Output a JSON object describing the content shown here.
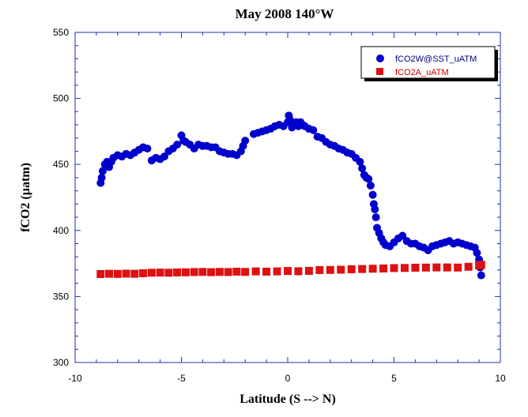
{
  "chart_data": {
    "type": "scatter",
    "title": "May 2008 140°W",
    "xlabel": "Latitude (S --> N)",
    "ylabel": "fCO2 (µatm)",
    "xlim": [
      -10,
      10
    ],
    "ylim": [
      300,
      550
    ],
    "xticks": [
      -10,
      -5,
      0,
      5,
      10
    ],
    "yticks": [
      300,
      350,
      400,
      450,
      500,
      550
    ],
    "legend_position": "top-right",
    "grid": false,
    "series": [
      {
        "name": "fCO2W@SST_uATM",
        "color": "#0000cc",
        "marker": "circle",
        "points": [
          [
            -8.8,
            436
          ],
          [
            -8.75,
            440
          ],
          [
            -8.7,
            445
          ],
          [
            -8.6,
            450
          ],
          [
            -8.5,
            452
          ],
          [
            -8.4,
            448
          ],
          [
            -8.3,
            452
          ],
          [
            -8.2,
            455
          ],
          [
            -8.0,
            457
          ],
          [
            -7.8,
            456
          ],
          [
            -7.6,
            458
          ],
          [
            -7.4,
            457
          ],
          [
            -7.2,
            459
          ],
          [
            -7.0,
            461
          ],
          [
            -6.8,
            463
          ],
          [
            -6.6,
            462
          ],
          [
            -6.4,
            453
          ],
          [
            -6.2,
            455
          ],
          [
            -6.0,
            454
          ],
          [
            -5.8,
            456
          ],
          [
            -5.6,
            460
          ],
          [
            -5.4,
            462
          ],
          [
            -5.2,
            465
          ],
          [
            -5.0,
            472
          ],
          [
            -4.9,
            468
          ],
          [
            -4.8,
            467
          ],
          [
            -4.6,
            465
          ],
          [
            -4.4,
            462
          ],
          [
            -4.2,
            465
          ],
          [
            -4.0,
            464
          ],
          [
            -3.8,
            464
          ],
          [
            -3.6,
            463
          ],
          [
            -3.4,
            463
          ],
          [
            -3.2,
            460
          ],
          [
            -3.0,
            459
          ],
          [
            -2.8,
            458
          ],
          [
            -2.6,
            458
          ],
          [
            -2.4,
            457
          ],
          [
            -2.2,
            460
          ],
          [
            -2.1,
            464
          ],
          [
            -2.0,
            468
          ],
          [
            -1.6,
            473
          ],
          [
            -1.4,
            474
          ],
          [
            -1.2,
            475
          ],
          [
            -1.0,
            476
          ],
          [
            -0.8,
            477
          ],
          [
            -0.6,
            479
          ],
          [
            -0.4,
            480
          ],
          [
            -0.2,
            479
          ],
          [
            0.0,
            482
          ],
          [
            0.05,
            487
          ],
          [
            0.1,
            484
          ],
          [
            0.2,
            478
          ],
          [
            0.3,
            481
          ],
          [
            0.4,
            482
          ],
          [
            0.5,
            479
          ],
          [
            0.6,
            482
          ],
          [
            0.7,
            480
          ],
          [
            0.8,
            479
          ],
          [
            1.0,
            477
          ],
          [
            1.2,
            476
          ],
          [
            1.4,
            471
          ],
          [
            1.6,
            470
          ],
          [
            1.8,
            467
          ],
          [
            2.0,
            465
          ],
          [
            2.2,
            464
          ],
          [
            2.4,
            462
          ],
          [
            2.6,
            461
          ],
          [
            2.8,
            459
          ],
          [
            3.0,
            458
          ],
          [
            3.2,
            455
          ],
          [
            3.4,
            452
          ],
          [
            3.5,
            447
          ],
          [
            3.6,
            442
          ],
          [
            3.7,
            440
          ],
          [
            3.8,
            439
          ],
          [
            3.9,
            434
          ],
          [
            4.0,
            427
          ],
          [
            4.05,
            420
          ],
          [
            4.1,
            416
          ],
          [
            4.15,
            410
          ],
          [
            4.2,
            402
          ],
          [
            4.3,
            398
          ],
          [
            4.4,
            394
          ],
          [
            4.5,
            391
          ],
          [
            4.6,
            389
          ],
          [
            4.8,
            388
          ],
          [
            5.0,
            391
          ],
          [
            5.2,
            394
          ],
          [
            5.4,
            396
          ],
          [
            5.6,
            392
          ],
          [
            5.8,
            390
          ],
          [
            6.0,
            390
          ],
          [
            6.2,
            388
          ],
          [
            6.4,
            387
          ],
          [
            6.6,
            385
          ],
          [
            6.8,
            388
          ],
          [
            7.0,
            389
          ],
          [
            7.2,
            390
          ],
          [
            7.4,
            391
          ],
          [
            7.6,
            392
          ],
          [
            7.8,
            390
          ],
          [
            8.0,
            391
          ],
          [
            8.2,
            390
          ],
          [
            8.4,
            389
          ],
          [
            8.6,
            388
          ],
          [
            8.8,
            387
          ],
          [
            8.9,
            383
          ],
          [
            9.0,
            378
          ],
          [
            9.05,
            372
          ],
          [
            9.1,
            366
          ]
        ]
      },
      {
        "name": "fCO2A_uATM",
        "color": "#dd1111",
        "marker": "square",
        "points": [
          [
            -8.8,
            367.0
          ],
          [
            -8.4,
            367.2
          ],
          [
            -8.0,
            367.1
          ],
          [
            -7.6,
            367.3
          ],
          [
            -7.2,
            367.2
          ],
          [
            -6.8,
            367.6
          ],
          [
            -6.4,
            368.0
          ],
          [
            -6.0,
            368.1
          ],
          [
            -5.6,
            368.0
          ],
          [
            -5.2,
            368.2
          ],
          [
            -4.8,
            368.3
          ],
          [
            -4.4,
            368.5
          ],
          [
            -4.0,
            368.6
          ],
          [
            -3.6,
            368.4
          ],
          [
            -3.2,
            368.6
          ],
          [
            -2.8,
            368.5
          ],
          [
            -2.4,
            368.8
          ],
          [
            -2.0,
            368.6
          ],
          [
            -1.5,
            369.0
          ],
          [
            -1.0,
            368.8
          ],
          [
            -0.5,
            369.0
          ],
          [
            0.0,
            369.3
          ],
          [
            0.5,
            369.1
          ],
          [
            1.0,
            369.4
          ],
          [
            1.5,
            370.0
          ],
          [
            2.0,
            370.1
          ],
          [
            2.5,
            370.3
          ],
          [
            3.0,
            370.6
          ],
          [
            3.5,
            370.8
          ],
          [
            4.0,
            371.0
          ],
          [
            4.5,
            371.2
          ],
          [
            5.0,
            371.5
          ],
          [
            5.5,
            371.6
          ],
          [
            6.0,
            371.8
          ],
          [
            6.5,
            371.9
          ],
          [
            7.0,
            372.0
          ],
          [
            7.5,
            372.0
          ],
          [
            8.0,
            371.9
          ],
          [
            8.5,
            372.5
          ],
          [
            9.0,
            373.5
          ],
          [
            9.1,
            374.0
          ]
        ]
      }
    ]
  }
}
